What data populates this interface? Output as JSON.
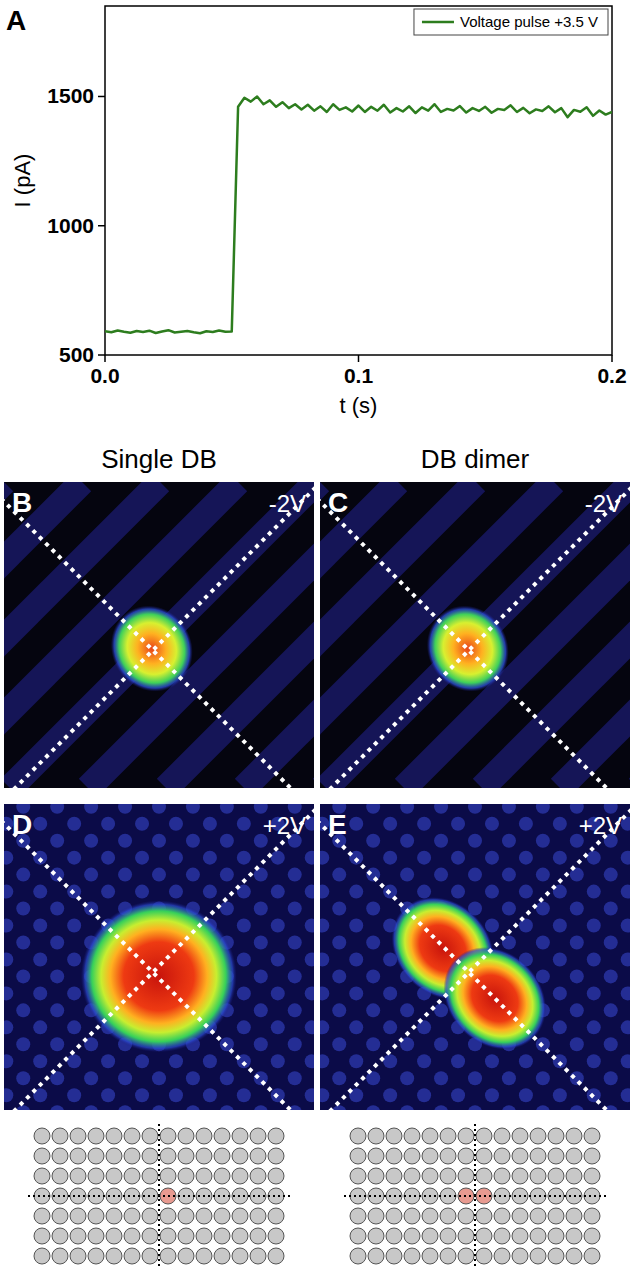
{
  "chart_data": {
    "type": "line",
    "panel_label": "A",
    "xlabel": "t (s)",
    "ylabel": "I (pA)",
    "x": [
      0,
      0.0025,
      0.005,
      0.0075,
      0.01,
      0.0125,
      0.015,
      0.0175,
      0.02,
      0.0225,
      0.025,
      0.0275,
      0.03,
      0.0325,
      0.035,
      0.0375,
      0.04,
      0.0425,
      0.045,
      0.0475,
      0.05,
      0.0525,
      0.055,
      0.0575,
      0.06,
      0.0625,
      0.065,
      0.0675,
      0.07,
      0.0725,
      0.075,
      0.0775,
      0.08,
      0.0825,
      0.085,
      0.0875,
      0.09,
      0.0925,
      0.095,
      0.0975,
      0.1,
      0.1025,
      0.105,
      0.1075,
      0.11,
      0.1125,
      0.115,
      0.1175,
      0.12,
      0.1225,
      0.125,
      0.1275,
      0.13,
      0.1325,
      0.135,
      0.1375,
      0.14,
      0.1425,
      0.145,
      0.1475,
      0.15,
      0.1525,
      0.155,
      0.1575,
      0.16,
      0.1625,
      0.165,
      0.1675,
      0.17,
      0.1725,
      0.175,
      0.1775,
      0.18,
      0.1825,
      0.185,
      0.1875,
      0.19,
      0.1925,
      0.195,
      0.1975,
      0.2
    ],
    "series": [
      {
        "name": "Voltage pulse +3.5 V",
        "color": "#2d7d1e",
        "values": [
          592,
          588,
          595,
          590,
          586,
          593,
          589,
          594,
          585,
          591,
          596,
          587,
          590,
          593,
          588,
          584,
          592,
          589,
          595,
          590,
          591,
          1460,
          1495,
          1480,
          1500,
          1470,
          1485,
          1460,
          1478,
          1455,
          1470,
          1450,
          1468,
          1445,
          1462,
          1440,
          1470,
          1448,
          1458,
          1442,
          1465,
          1440,
          1460,
          1445,
          1468,
          1438,
          1455,
          1442,
          1462,
          1436,
          1458,
          1445,
          1470,
          1440,
          1452,
          1446,
          1463,
          1438,
          1455,
          1444,
          1460,
          1437,
          1452,
          1448,
          1466,
          1440,
          1456,
          1435,
          1450,
          1444,
          1462,
          1439,
          1455,
          1420,
          1448,
          1441,
          1458,
          1425,
          1446,
          1430,
          1440
        ]
      }
    ],
    "xlim": [
      0,
      0.2
    ],
    "ylim": [
      500,
      1850
    ],
    "xticks": [
      {
        "value": 0,
        "label": "0.0"
      },
      {
        "value": 0.1,
        "label": "0.1"
      },
      {
        "value": 0.2,
        "label": "0.2"
      }
    ],
    "yticks": [
      500,
      1000,
      1500
    ],
    "legend": "upper right"
  },
  "images": {
    "columns": [
      {
        "title": "Single DB",
        "panels": [
          {
            "letter": "B",
            "bias": "-2V"
          },
          {
            "letter": "D",
            "bias": "+2V"
          }
        ]
      },
      {
        "title": "DB dimer",
        "panels": [
          {
            "letter": "C",
            "bias": "-2V"
          },
          {
            "letter": "E",
            "bias": "+2V"
          }
        ]
      }
    ]
  }
}
